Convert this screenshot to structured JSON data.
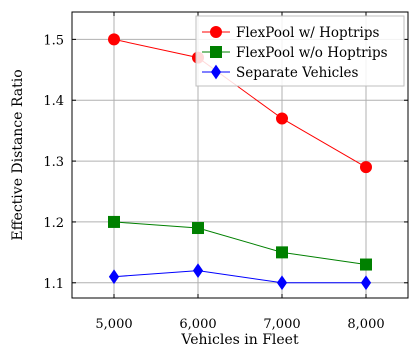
{
  "chart_data": {
    "type": "line",
    "xlabel": "Vehicles in Fleet",
    "ylabel": "Effective Distance Ratio",
    "x": [
      5000,
      6000,
      7000,
      8000
    ],
    "x_tick_labels": [
      "5,000",
      "6,000",
      "7,000",
      "8,000"
    ],
    "xlim": [
      4500,
      8500
    ],
    "ylim": [
      1.075,
      1.545
    ],
    "y_ticks": [
      1.1,
      1.2,
      1.3,
      1.4,
      1.5
    ],
    "y_tick_labels": [
      "1.1",
      "1.2",
      "1.3",
      "1.4",
      "1.5"
    ],
    "grid": true,
    "legend_position": "top-right",
    "series": [
      {
        "name": "FlexPool w/ Hoptrips",
        "values": [
          1.5,
          1.47,
          1.37,
          1.29
        ],
        "color": "#ff0000",
        "marker": "circle"
      },
      {
        "name": "FlexPool w/o Hoptrips",
        "values": [
          1.2,
          1.19,
          1.15,
          1.13
        ],
        "color": "#008000",
        "marker": "square"
      },
      {
        "name": "Separate Vehicles",
        "values": [
          1.11,
          1.12,
          1.1,
          1.1
        ],
        "color": "#0000ff",
        "marker": "diamond"
      }
    ]
  }
}
